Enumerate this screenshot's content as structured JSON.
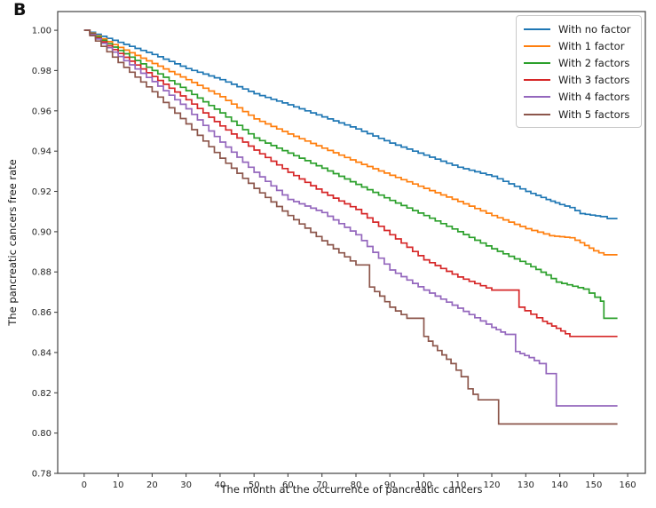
{
  "panel_label": "B",
  "axis_color": "#444444",
  "tick_label_color": "#262626",
  "chart_data": {
    "type": "line",
    "subtype": "kaplan-meier-step",
    "title": "",
    "xlabel": "The month at the occurrence of pancreatic cancers",
    "ylabel": "The pancreatic cancers free rate",
    "xlim": [
      -7.8,
      165.2
    ],
    "ylim": [
      0.78,
      1.0093
    ],
    "xticks": [
      0,
      10,
      20,
      30,
      40,
      50,
      60,
      70,
      80,
      90,
      100,
      110,
      120,
      130,
      140,
      150,
      160
    ],
    "yticks": [
      0.78,
      0.8,
      0.82,
      0.84,
      0.86,
      0.88,
      0.9,
      0.92,
      0.94,
      0.96,
      0.98,
      1.0
    ],
    "grid": false,
    "legend_position": "upper right",
    "series": [
      {
        "name": "With no factor",
        "color": "#1f77b4",
        "points": [
          [
            0,
            1.0
          ],
          [
            10,
            0.994
          ],
          [
            20,
            0.988
          ],
          [
            30,
            0.981
          ],
          [
            40,
            0.9755
          ],
          [
            50,
            0.9685
          ],
          [
            60,
            0.963
          ],
          [
            70,
            0.957
          ],
          [
            80,
            0.951
          ],
          [
            90,
            0.944
          ],
          [
            100,
            0.938
          ],
          [
            110,
            0.932
          ],
          [
            120,
            0.9275
          ],
          [
            130,
            0.92
          ],
          [
            136,
            0.916
          ],
          [
            140,
            0.9135
          ],
          [
            143,
            0.912
          ],
          [
            146,
            0.909
          ],
          [
            152,
            0.9075
          ],
          [
            154,
            0.9065
          ],
          [
            157,
            0.9065
          ]
        ]
      },
      {
        "name": "With 1 factor",
        "color": "#ff7f0e",
        "points": [
          [
            0,
            1.0
          ],
          [
            10,
            0.9915
          ],
          [
            20,
            0.9835
          ],
          [
            30,
            0.9755
          ],
          [
            40,
            0.967
          ],
          [
            50,
            0.956
          ],
          [
            60,
            0.9485
          ],
          [
            70,
            0.9415
          ],
          [
            80,
            0.9345
          ],
          [
            90,
            0.928
          ],
          [
            100,
            0.9215
          ],
          [
            110,
            0.915
          ],
          [
            120,
            0.908
          ],
          [
            130,
            0.9015
          ],
          [
            137,
            0.898
          ],
          [
            143,
            0.897
          ],
          [
            146,
            0.8945
          ],
          [
            150,
            0.8905
          ],
          [
            153,
            0.8885
          ],
          [
            157,
            0.8885
          ]
        ]
      },
      {
        "name": "With 2 factors",
        "color": "#2ca02c",
        "points": [
          [
            0,
            1.0
          ],
          [
            10,
            0.99
          ],
          [
            20,
            0.98
          ],
          [
            30,
            0.97
          ],
          [
            40,
            0.959
          ],
          [
            50,
            0.9465
          ],
          [
            60,
            0.939
          ],
          [
            70,
            0.9315
          ],
          [
            80,
            0.9235
          ],
          [
            90,
            0.9155
          ],
          [
            100,
            0.908
          ],
          [
            110,
            0.9
          ],
          [
            120,
            0.8915
          ],
          [
            130,
            0.884
          ],
          [
            136,
            0.8785
          ],
          [
            139,
            0.875
          ],
          [
            147,
            0.8715
          ],
          [
            152,
            0.8655
          ],
          [
            153,
            0.857
          ],
          [
            157,
            0.857
          ]
        ]
      },
      {
        "name": "With 3 factors",
        "color": "#d62728",
        "points": [
          [
            0,
            1.0
          ],
          [
            10,
            0.9885
          ],
          [
            20,
            0.977
          ],
          [
            30,
            0.9655
          ],
          [
            40,
            0.9525
          ],
          [
            50,
            0.9405
          ],
          [
            60,
            0.9295
          ],
          [
            70,
            0.9195
          ],
          [
            80,
            0.911
          ],
          [
            90,
            0.8985
          ],
          [
            100,
            0.886
          ],
          [
            110,
            0.8775
          ],
          [
            120,
            0.871
          ],
          [
            128,
            0.8625
          ],
          [
            135,
            0.8555
          ],
          [
            139,
            0.852
          ],
          [
            143,
            0.848
          ],
          [
            157,
            0.848
          ]
        ]
      },
      {
        "name": "With 4 factors",
        "color": "#9467bd",
        "points": [
          [
            0,
            1.0
          ],
          [
            10,
            0.987
          ],
          [
            20,
            0.9745
          ],
          [
            30,
            0.961
          ],
          [
            40,
            0.9445
          ],
          [
            50,
            0.9295
          ],
          [
            60,
            0.916
          ],
          [
            70,
            0.9095
          ],
          [
            80,
            0.8985
          ],
          [
            90,
            0.881
          ],
          [
            100,
            0.871
          ],
          [
            110,
            0.862
          ],
          [
            120,
            0.8525
          ],
          [
            124,
            0.849
          ],
          [
            127,
            0.8405
          ],
          [
            131,
            0.8375
          ],
          [
            134,
            0.8345
          ],
          [
            136,
            0.8295
          ],
          [
            139,
            0.8135
          ],
          [
            157,
            0.8135
          ]
        ]
      },
      {
        "name": "With 5 factors",
        "color": "#8c564b",
        "points": [
          [
            0,
            1.0
          ],
          [
            10,
            0.984
          ],
          [
            20,
            0.9695
          ],
          [
            30,
            0.9535
          ],
          [
            40,
            0.9365
          ],
          [
            50,
            0.9215
          ],
          [
            60,
            0.908
          ],
          [
            70,
            0.8955
          ],
          [
            80,
            0.8835
          ],
          [
            84,
            0.8725
          ],
          [
            87,
            0.868
          ],
          [
            90,
            0.8625
          ],
          [
            95,
            0.857
          ],
          [
            100,
            0.848
          ],
          [
            104,
            0.841
          ],
          [
            108,
            0.8345
          ],
          [
            111,
            0.828
          ],
          [
            113,
            0.822
          ],
          [
            116,
            0.8165
          ],
          [
            122,
            0.8045
          ],
          [
            157,
            0.8045
          ]
        ]
      }
    ]
  }
}
